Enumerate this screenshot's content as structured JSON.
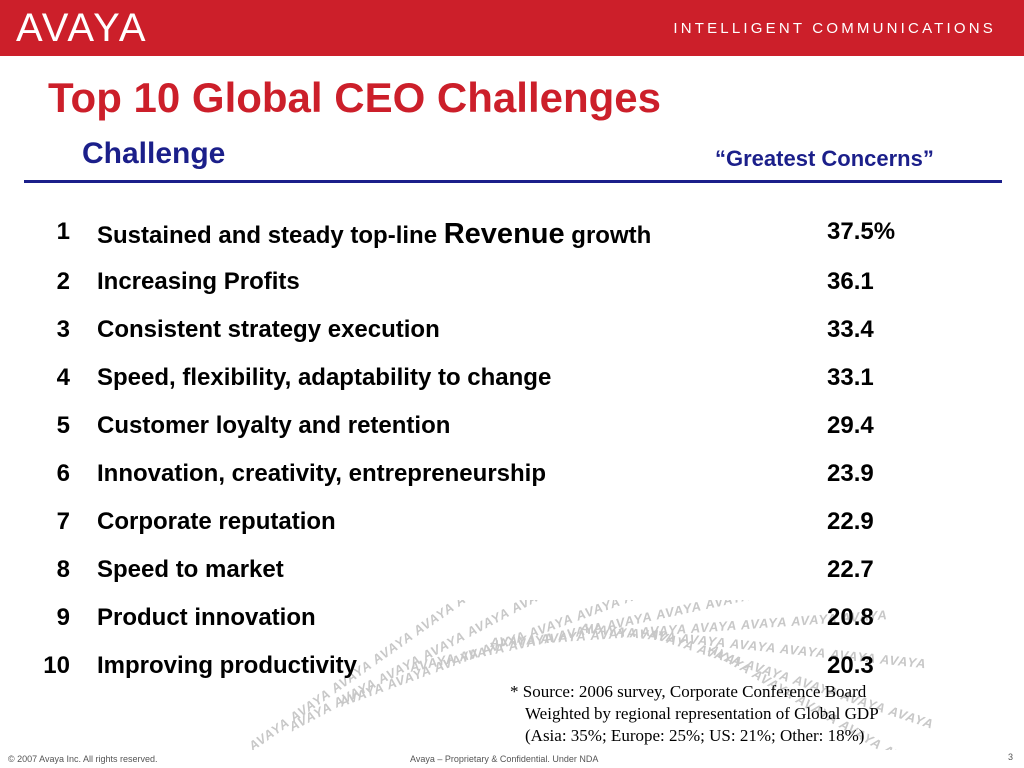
{
  "header": {
    "logo_text": "AVAYA",
    "tagline": "INTELLIGENT COMMUNICATIONS",
    "brand_color": "#cc1f2a",
    "accent_color": "#1b1f8a"
  },
  "slide": {
    "title": "Top 10 Global CEO Challenges",
    "col_challenge": "Challenge",
    "col_concerns": "“Greatest Concerns”"
  },
  "rows": [
    {
      "rank": "1",
      "pre": "Sustained and steady top-line ",
      "emph": "Revenue",
      "post": " growth",
      "value": "37.5%"
    },
    {
      "rank": "2",
      "pre": "Increasing Profits",
      "emph": "",
      "post": "",
      "value": "36.1"
    },
    {
      "rank": "3",
      "pre": "Consistent strategy execution",
      "emph": "",
      "post": "",
      "value": "33.4"
    },
    {
      "rank": "4",
      "pre": "Speed, flexibility, adaptability to change",
      "emph": "",
      "post": "",
      "value": "33.1"
    },
    {
      "rank": "5",
      "pre": "Customer loyalty and retention",
      "emph": "",
      "post": "",
      "value": "29.4"
    },
    {
      "rank": "6",
      "pre": "Innovation, creativity, entrepreneurship",
      "emph": "",
      "post": "",
      "value": "23.9"
    },
    {
      "rank": "7",
      "pre": "Corporate reputation",
      "emph": "",
      "post": "",
      "value": "22.9"
    },
    {
      "rank": "8",
      "pre": "Speed to market",
      "emph": "",
      "post": "",
      "value": "22.7"
    },
    {
      "rank": "9",
      "pre": "Product innovation",
      "emph": "",
      "post": "",
      "value": "20.8"
    },
    {
      "rank": "10",
      "pre": "Improving productivity",
      "emph": "",
      "post": "",
      "value": "20.3"
    }
  ],
  "footnote": {
    "line1": "* Source: 2006 survey, Corporate Conference Board",
    "line2": "Weighted by regional representation of Global GDP",
    "line3": "(Asia: 35%; Europe: 25%; US: 21%; Other: 18%)"
  },
  "footer": {
    "copyright": "© 2007 Avaya Inc. All rights reserved.",
    "confidential": "Avaya – Proprietary & Confidential.  Under NDA",
    "page_number": "3"
  },
  "watermark": {
    "text": "AVAYA"
  }
}
